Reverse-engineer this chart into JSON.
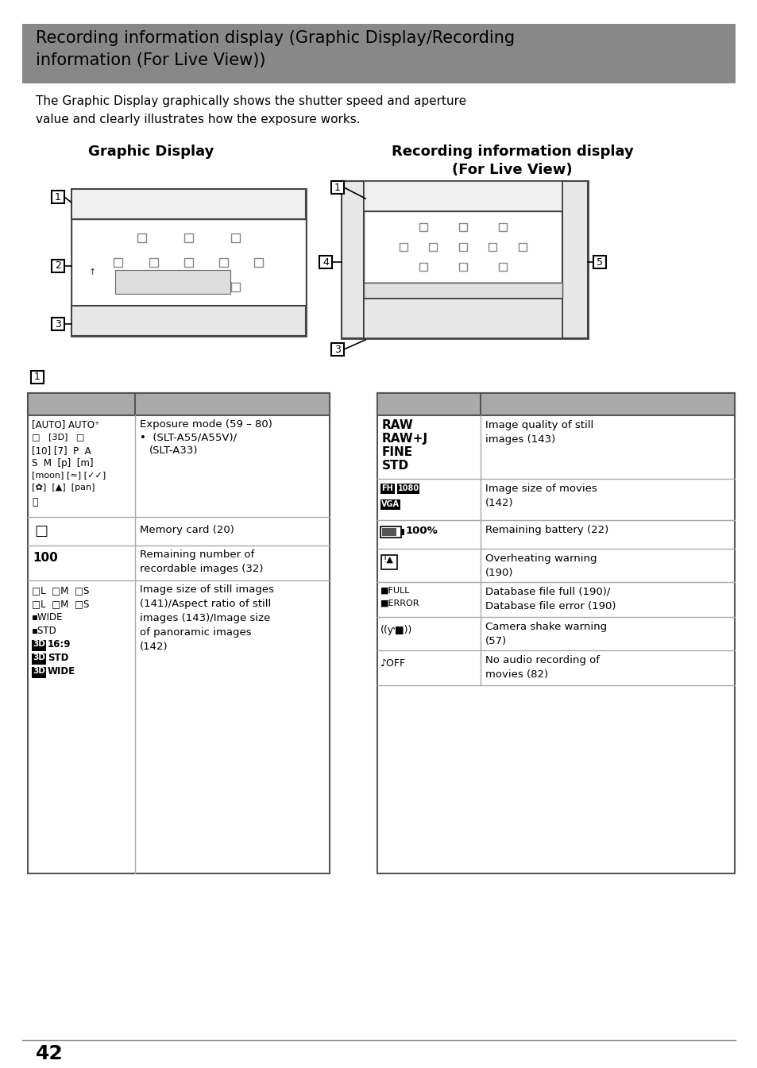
{
  "title_line1": "Recording information display (Graphic Display/Recording",
  "title_line2": "information (For Live View))",
  "title_bg": "#888888",
  "intro_line1": "The Graphic Display graphically shows the shutter speed and aperture",
  "intro_line2": "value and clearly illustrates how the exposure works.",
  "graphic_display_label": "Graphic Display",
  "recording_info_label_line1": "Recording information display",
  "recording_info_label_line2": "(For Live View)",
  "page_number": "42",
  "white": "#ffffff",
  "black": "#000000",
  "gray_header": "#aaaaaa",
  "gray_title": "#888888",
  "light_gray": "#e8e8e8",
  "mid_gray": "#cccccc",
  "border_color": "#555555"
}
